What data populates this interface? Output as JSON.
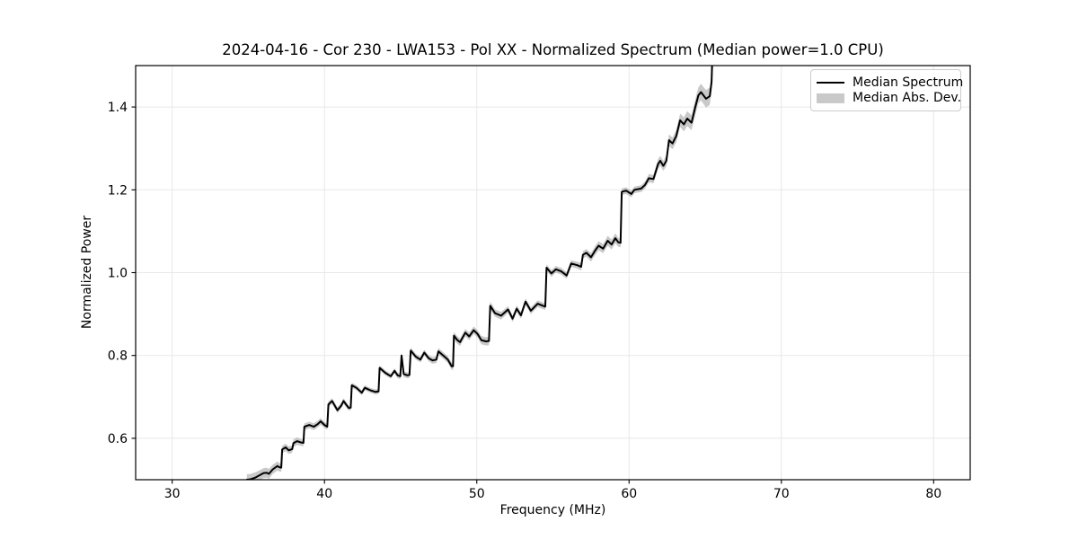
{
  "colors": {
    "line": "#000000",
    "band": "#888888",
    "band_opacity": 0.45,
    "grid": "#e8e8e8",
    "spine": "#000000",
    "legend_swatch": "#c9c9c9",
    "text": "#000000",
    "background": "#ffffff"
  },
  "chart_data": {
    "type": "line",
    "title": "2024-04-16 - Cor 230 - LWA153 - Pol XX - Normalized Spectrum (Median power=1.0 CPU)",
    "xlabel": "Frequency (MHz)",
    "ylabel": "Normalized Power",
    "xlim": [
      27.6,
      82.4
    ],
    "ylim": [
      0.5,
      1.5
    ],
    "grid": true,
    "legend_position": "upper right",
    "xticks": [
      {
        "v": 30,
        "label": "30"
      },
      {
        "v": 40,
        "label": "40"
      },
      {
        "v": 50,
        "label": "50"
      },
      {
        "v": 60,
        "label": "60"
      },
      {
        "v": 70,
        "label": "70"
      },
      {
        "v": 80,
        "label": "80"
      }
    ],
    "yticks": [
      {
        "v": 0.6,
        "label": "0.6"
      },
      {
        "v": 0.8,
        "label": "0.8"
      },
      {
        "v": 1.0,
        "label": "1.0"
      },
      {
        "v": 1.2,
        "label": "1.2"
      },
      {
        "v": 1.4,
        "label": "1.4"
      }
    ],
    "legend": {
      "entries": [
        {
          "label": "Median Spectrum",
          "swatch": "line",
          "color": "#000000"
        },
        {
          "label": "Median Abs. Dev.",
          "swatch": "patch",
          "color": "#c9c9c9"
        }
      ]
    },
    "band": {
      "name": "Median Abs. Dev.",
      "description": "shaded band = median spectrum ± median absolute deviation",
      "color": "#888888",
      "opacity": 0.45
    },
    "series": [
      {
        "name": "Median Spectrum",
        "type": "line",
        "color": "#000000",
        "points_fvd": [
          [
            34.9,
            0.5,
            0.013
          ],
          [
            35.15,
            0.501,
            0.013
          ],
          [
            35.45,
            0.505,
            0.013
          ],
          [
            35.75,
            0.511,
            0.012
          ],
          [
            36.0,
            0.516,
            0.012
          ],
          [
            36.2,
            0.517,
            0.012
          ],
          [
            36.35,
            0.514,
            0.012
          ],
          [
            36.6,
            0.525,
            0.011
          ],
          [
            36.9,
            0.533,
            0.011
          ],
          [
            37.05,
            0.53,
            0.01
          ],
          [
            37.16,
            0.529,
            0.01
          ],
          [
            37.22,
            0.573,
            0.009
          ],
          [
            37.45,
            0.578,
            0.009
          ],
          [
            37.65,
            0.571,
            0.009
          ],
          [
            37.88,
            0.574,
            0.009
          ],
          [
            37.96,
            0.588,
            0.009
          ],
          [
            38.2,
            0.593,
            0.009
          ],
          [
            38.45,
            0.59,
            0.008
          ],
          [
            38.62,
            0.589,
            0.008
          ],
          [
            38.68,
            0.628,
            0.008
          ],
          [
            39.0,
            0.632,
            0.008
          ],
          [
            39.3,
            0.628,
            0.008
          ],
          [
            39.55,
            0.634,
            0.008
          ],
          [
            39.75,
            0.641,
            0.008
          ],
          [
            40.0,
            0.632,
            0.007
          ],
          [
            40.18,
            0.628,
            0.007
          ],
          [
            40.26,
            0.682,
            0.007
          ],
          [
            40.5,
            0.69,
            0.007
          ],
          [
            40.85,
            0.668,
            0.007
          ],
          [
            41.1,
            0.679,
            0.007
          ],
          [
            41.25,
            0.69,
            0.007
          ],
          [
            41.45,
            0.68,
            0.007
          ],
          [
            41.6,
            0.673,
            0.006
          ],
          [
            41.72,
            0.674,
            0.006
          ],
          [
            41.79,
            0.728,
            0.006
          ],
          [
            42.1,
            0.722,
            0.006
          ],
          [
            42.45,
            0.71,
            0.006
          ],
          [
            42.65,
            0.722,
            0.006
          ],
          [
            43.0,
            0.716,
            0.006
          ],
          [
            43.35,
            0.712,
            0.006
          ],
          [
            43.55,
            0.713,
            0.006
          ],
          [
            43.62,
            0.77,
            0.006
          ],
          [
            44.0,
            0.758,
            0.006
          ],
          [
            44.35,
            0.75,
            0.006
          ],
          [
            44.6,
            0.763,
            0.006
          ],
          [
            44.8,
            0.752,
            0.007
          ],
          [
            44.98,
            0.75,
            0.007
          ],
          [
            45.06,
            0.8,
            0.007
          ],
          [
            45.2,
            0.755,
            0.007
          ],
          [
            45.45,
            0.752,
            0.007
          ],
          [
            45.58,
            0.753,
            0.007
          ],
          [
            45.66,
            0.812,
            0.007
          ],
          [
            46.0,
            0.797,
            0.007
          ],
          [
            46.3,
            0.79,
            0.007
          ],
          [
            46.55,
            0.807,
            0.007
          ],
          [
            46.85,
            0.793,
            0.007
          ],
          [
            47.1,
            0.788,
            0.008
          ],
          [
            47.35,
            0.79,
            0.008
          ],
          [
            47.48,
            0.81,
            0.008
          ],
          [
            47.8,
            0.8,
            0.008
          ],
          [
            48.1,
            0.79,
            0.008
          ],
          [
            48.35,
            0.774,
            0.009
          ],
          [
            48.44,
            0.774,
            0.009
          ],
          [
            48.5,
            0.848,
            0.009
          ],
          [
            48.7,
            0.838,
            0.009
          ],
          [
            48.9,
            0.832,
            0.009
          ],
          [
            49.25,
            0.855,
            0.009
          ],
          [
            49.5,
            0.846,
            0.009
          ],
          [
            49.8,
            0.861,
            0.009
          ],
          [
            50.05,
            0.852,
            0.009
          ],
          [
            50.3,
            0.837,
            0.01
          ],
          [
            50.6,
            0.834,
            0.01
          ],
          [
            50.8,
            0.835,
            0.01
          ],
          [
            50.88,
            0.92,
            0.01
          ],
          [
            51.2,
            0.902,
            0.009
          ],
          [
            51.6,
            0.896,
            0.009
          ],
          [
            52.05,
            0.911,
            0.008
          ],
          [
            52.35,
            0.889,
            0.008
          ],
          [
            52.62,
            0.913,
            0.008
          ],
          [
            52.9,
            0.897,
            0.008
          ],
          [
            53.2,
            0.93,
            0.008
          ],
          [
            53.55,
            0.908,
            0.008
          ],
          [
            54.0,
            0.925,
            0.008
          ],
          [
            54.35,
            0.92,
            0.008
          ],
          [
            54.5,
            0.918,
            0.008
          ],
          [
            54.58,
            1.012,
            0.008
          ],
          [
            54.9,
            0.998,
            0.008
          ],
          [
            55.2,
            1.008,
            0.008
          ],
          [
            55.55,
            1.003,
            0.008
          ],
          [
            55.9,
            0.993,
            0.008
          ],
          [
            56.2,
            1.022,
            0.008
          ],
          [
            56.6,
            1.018,
            0.008
          ],
          [
            56.85,
            1.014,
            0.009
          ],
          [
            56.97,
            1.043,
            0.009
          ],
          [
            57.2,
            1.048,
            0.009
          ],
          [
            57.5,
            1.037,
            0.01
          ],
          [
            57.8,
            1.055,
            0.011
          ],
          [
            58.0,
            1.065,
            0.011
          ],
          [
            58.3,
            1.058,
            0.011
          ],
          [
            58.6,
            1.077,
            0.012
          ],
          [
            58.85,
            1.068,
            0.012
          ],
          [
            59.1,
            1.083,
            0.012
          ],
          [
            59.3,
            1.073,
            0.011
          ],
          [
            59.44,
            1.072,
            0.01
          ],
          [
            59.52,
            1.195,
            0.008
          ],
          [
            59.8,
            1.198,
            0.008
          ],
          [
            60.15,
            1.19,
            0.008
          ],
          [
            60.35,
            1.2,
            0.008
          ],
          [
            60.8,
            1.203,
            0.008
          ],
          [
            61.05,
            1.212,
            0.009
          ],
          [
            61.3,
            1.228,
            0.01
          ],
          [
            61.6,
            1.226,
            0.01
          ],
          [
            61.9,
            1.262,
            0.012
          ],
          [
            62.05,
            1.27,
            0.012
          ],
          [
            62.25,
            1.258,
            0.012
          ],
          [
            62.45,
            1.27,
            0.013
          ],
          [
            62.62,
            1.32,
            0.014
          ],
          [
            62.85,
            1.312,
            0.014
          ],
          [
            63.1,
            1.33,
            0.015
          ],
          [
            63.35,
            1.368,
            0.016
          ],
          [
            63.6,
            1.358,
            0.017
          ],
          [
            63.82,
            1.372,
            0.018
          ],
          [
            64.1,
            1.362,
            0.018
          ],
          [
            64.35,
            1.4,
            0.019
          ],
          [
            64.55,
            1.428,
            0.019
          ],
          [
            64.72,
            1.436,
            0.02
          ],
          [
            65.05,
            1.42,
            0.021
          ],
          [
            65.3,
            1.426,
            0.021
          ],
          [
            65.42,
            1.46,
            0.021
          ],
          [
            65.5,
            1.56,
            0.022
          ]
        ]
      }
    ]
  }
}
